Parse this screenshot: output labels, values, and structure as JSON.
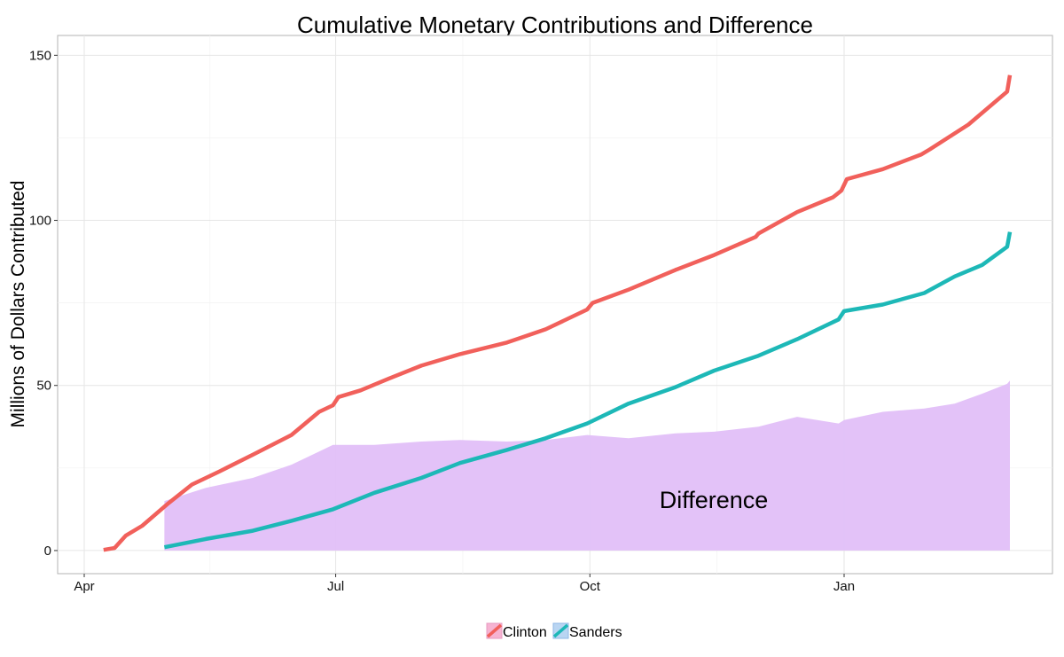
{
  "chart_data": {
    "type": "line",
    "title": "Cumulative Monetary Contributions and Difference",
    "xlabel": "",
    "ylabel": "Millions of Dollars Contributed",
    "x_ticks": [
      "Apr",
      "Jul",
      "Oct",
      "Jan"
    ],
    "y_ticks": [
      "0",
      "50",
      "100",
      "150"
    ],
    "ylim": [
      -7,
      156
    ],
    "grid": true,
    "legend_position": "bottom",
    "annotation": "Difference",
    "colors": {
      "Clinton": "#F1605B",
      "Sanders": "#1DB8B7",
      "Difference": "#E2BFF8"
    },
    "series": [
      {
        "name": "Clinton",
        "x": [
          "2015-04-08",
          "2015-04-12",
          "2015-04-16",
          "2015-04-22",
          "2015-05-01",
          "2015-05-10",
          "2015-05-20",
          "2015-06-01",
          "2015-06-15",
          "2015-06-25",
          "2015-06-30",
          "2015-07-02",
          "2015-07-10",
          "2015-07-20",
          "2015-08-01",
          "2015-08-15",
          "2015-09-01",
          "2015-09-15",
          "2015-09-30",
          "2015-10-02",
          "2015-10-15",
          "2015-11-01",
          "2015-11-15",
          "2015-11-30",
          "2015-12-01",
          "2015-12-15",
          "2015-12-28",
          "2015-12-31",
          "2016-01-02",
          "2016-01-15",
          "2016-01-29",
          "2016-02-01",
          "2016-02-15",
          "2016-02-29",
          "2016-03-01"
        ],
        "values": [
          0.2,
          0.8,
          4.5,
          7.5,
          14,
          20,
          24,
          29,
          35,
          42,
          44,
          46.5,
          48.5,
          52,
          56,
          59.5,
          63,
          67,
          73,
          75,
          79,
          85,
          89.5,
          95,
          96,
          102.5,
          107,
          109,
          112.5,
          115.5,
          120,
          121.5,
          129,
          139,
          144
        ]
      },
      {
        "name": "Sanders",
        "x": [
          "2015-04-30",
          "2015-05-15",
          "2015-06-01",
          "2015-06-15",
          "2015-06-30",
          "2015-07-15",
          "2015-08-01",
          "2015-08-15",
          "2015-09-01",
          "2015-09-15",
          "2015-09-30",
          "2015-10-15",
          "2015-11-01",
          "2015-11-15",
          "2015-12-01",
          "2015-12-15",
          "2015-12-30",
          "2016-01-01",
          "2016-01-15",
          "2016-01-30",
          "2016-02-10",
          "2016-02-20",
          "2016-02-29",
          "2016-03-01"
        ],
        "values": [
          1,
          3.5,
          6,
          9,
          12.5,
          17.5,
          22,
          26.5,
          30.5,
          34,
          38.5,
          44.5,
          49.5,
          54.5,
          59,
          64,
          70,
          72.5,
          74.5,
          78,
          83,
          86.5,
          92,
          96.5
        ]
      },
      {
        "name": "Difference",
        "x": [
          "2015-04-30",
          "2015-05-15",
          "2015-06-01",
          "2015-06-15",
          "2015-06-30",
          "2015-07-15",
          "2015-08-01",
          "2015-08-15",
          "2015-09-01",
          "2015-09-15",
          "2015-09-30",
          "2015-10-15",
          "2015-11-01",
          "2015-11-15",
          "2015-12-01",
          "2015-12-15",
          "2015-12-30",
          "2016-01-01",
          "2016-01-15",
          "2016-01-30",
          "2016-02-10",
          "2016-02-20",
          "2016-02-29",
          "2016-03-01"
        ],
        "values": [
          15,
          19,
          22,
          26,
          32,
          32,
          33,
          33.5,
          33,
          33.5,
          35,
          34,
          35.5,
          36,
          37.5,
          40.5,
          38.5,
          39.5,
          42,
          43,
          44.5,
          47.5,
          50.5,
          51.5
        ]
      }
    ]
  }
}
